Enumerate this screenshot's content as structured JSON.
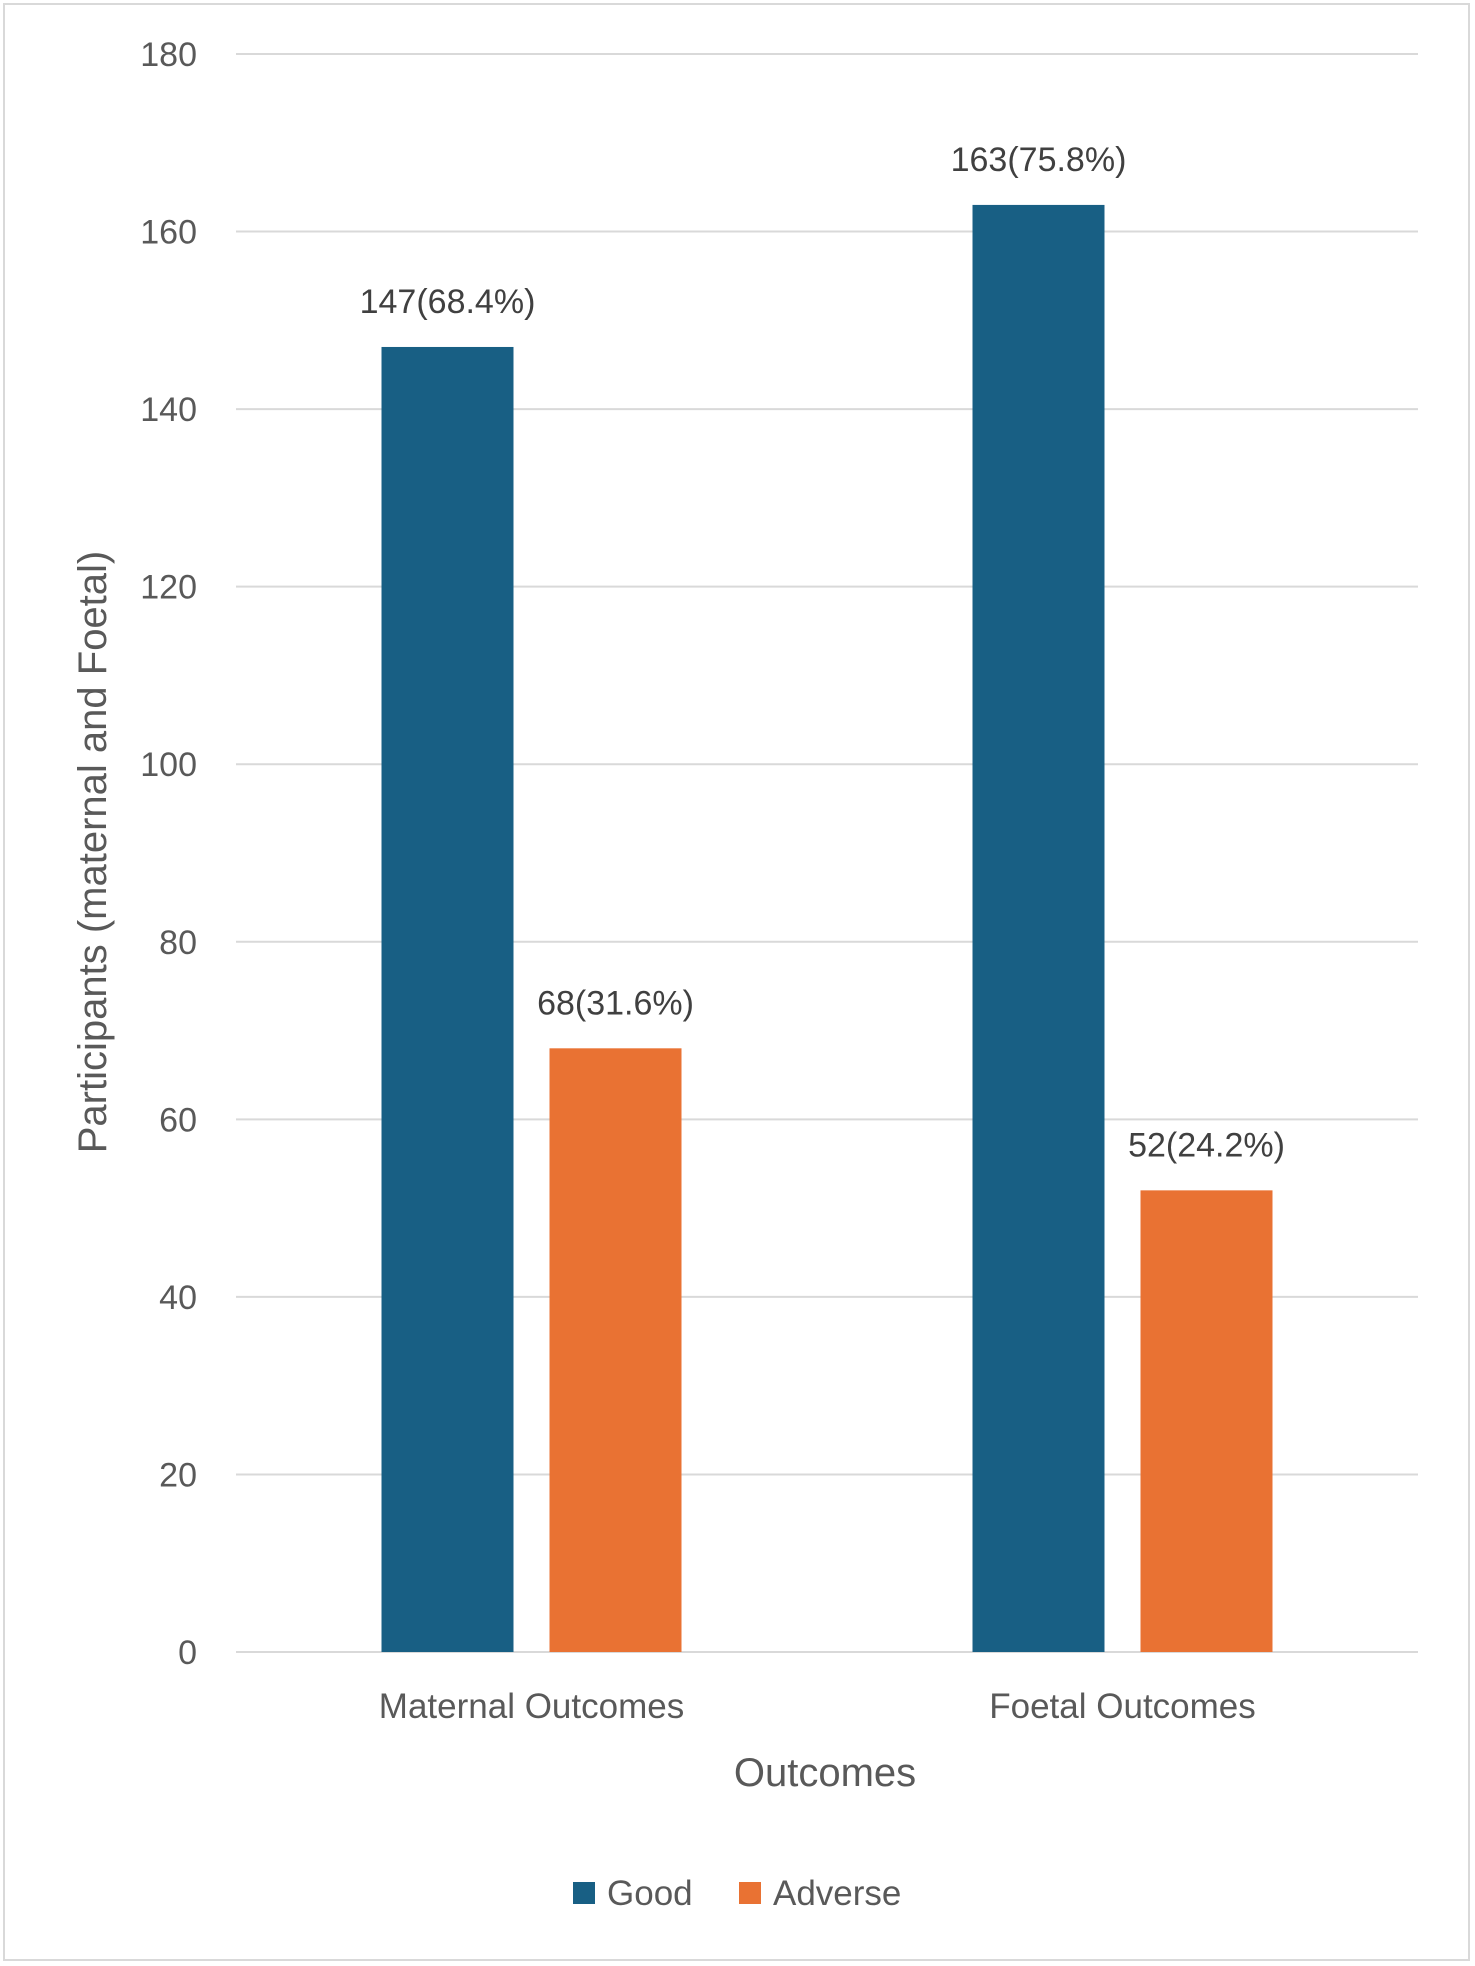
{
  "chart_data": {
    "type": "bar",
    "title": "",
    "xlabel": "Outcomes",
    "ylabel": "Participants (maternal and Foetal)",
    "categories": [
      "Maternal Outcomes",
      "Foetal Outcomes"
    ],
    "series": [
      {
        "name": "Good",
        "color": "#185f84",
        "values": [
          147,
          163
        ],
        "labels": [
          "147(68.4%)",
          "163(75.8%)"
        ]
      },
      {
        "name": "Adverse",
        "color": "#e97233",
        "values": [
          68,
          52
        ],
        "labels": [
          "68(31.6%)",
          "52(24.2%)"
        ]
      }
    ],
    "ylim": [
      0,
      180
    ],
    "yticks": [
      0,
      20,
      40,
      60,
      80,
      100,
      120,
      140,
      160,
      180
    ],
    "grid": true,
    "legend_position": "bottom"
  }
}
